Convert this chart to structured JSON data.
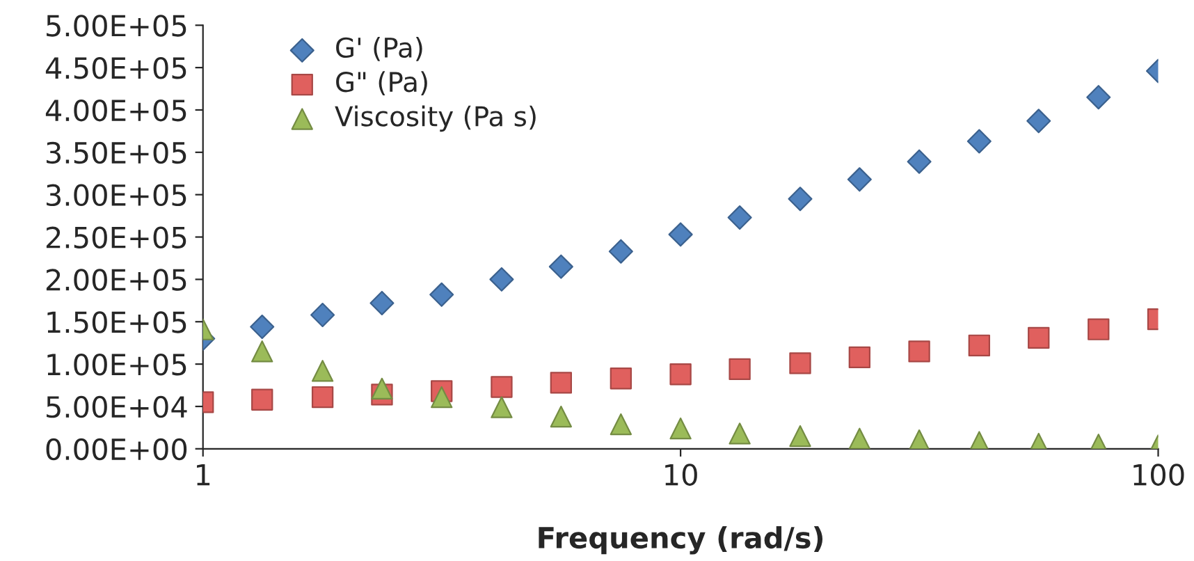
{
  "chart_data": {
    "type": "scatter",
    "xlabel": "Frequency (rad/s)",
    "log": "x",
    "grid": false,
    "legend": "top left",
    "x": [
      1,
      1.33,
      1.78,
      2.37,
      3.16,
      4.22,
      5.62,
      7.5,
      10,
      13.3,
      17.8,
      23.7,
      31.6,
      42.2,
      56.2,
      75,
      100
    ],
    "xlim": [
      1,
      100
    ],
    "xticks": [
      1,
      10,
      100
    ],
    "ylim": [
      0,
      500000
    ],
    "yticks": [
      {
        "value": 0,
        "label": "0.00E+00"
      },
      {
        "value": 50000,
        "label": "5.00E+04"
      },
      {
        "value": 100000,
        "label": "1.00E+05"
      },
      {
        "value": 150000,
        "label": "1.50E+05"
      },
      {
        "value": 200000,
        "label": "2.00E+05"
      },
      {
        "value": 250000,
        "label": "2.50E+05"
      },
      {
        "value": 300000,
        "label": "3.00E+05"
      },
      {
        "value": 350000,
        "label": "3.50E+05"
      },
      {
        "value": 400000,
        "label": "4.00E+05"
      },
      {
        "value": 450000,
        "label": "4.50E+05"
      },
      {
        "value": 500000,
        "label": "5.00E+05"
      }
    ],
    "series": [
      {
        "name": "G' (Pa)",
        "color": "#4f81bd",
        "marker": "diamond",
        "values": [
          130000,
          144000,
          158000,
          172000,
          182000,
          200000,
          215000,
          233000,
          253000,
          273000,
          295000,
          318000,
          339000,
          363000,
          387000,
          415000,
          446000
        ]
      },
      {
        "name": "G\" (Pa)",
        "color": "#e0605e",
        "marker": "square",
        "values": [
          55000,
          58000,
          61000,
          64000,
          68000,
          73000,
          78000,
          83000,
          88000,
          94000,
          101000,
          108000,
          115000,
          122000,
          131000,
          141000,
          153000
        ]
      },
      {
        "name": "Viscosity (Pa s)",
        "color": "#9bbb59",
        "marker": "triangle",
        "values": [
          141000,
          115000,
          92000,
          71000,
          61000,
          49000,
          38000,
          29000,
          24000,
          18000,
          15000,
          12000,
          10000,
          8000,
          6000,
          5000,
          4000
        ]
      }
    ]
  }
}
